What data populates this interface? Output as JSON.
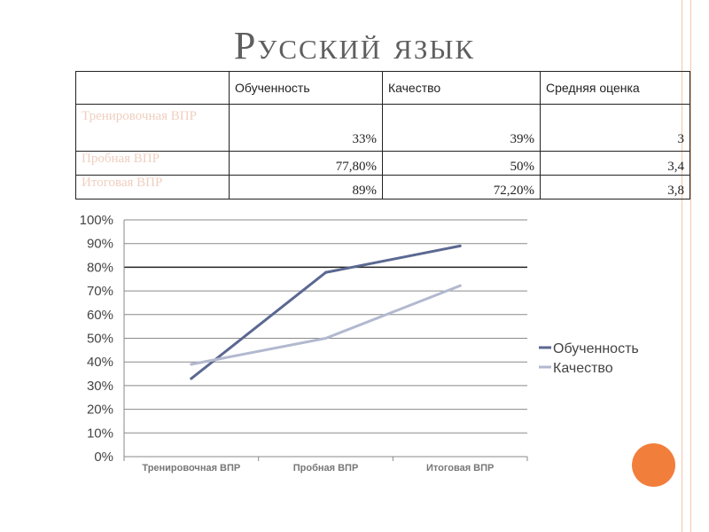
{
  "title": "Русский язык",
  "table": {
    "headers": [
      "",
      "Обученность",
      "Качество",
      "Средняя оценка"
    ],
    "rows": [
      {
        "label": "Тренировочная ВПР",
        "values": [
          "33%",
          "39%",
          "3"
        ]
      },
      {
        "label": "Пробная ВПР",
        "values": [
          "77,80%",
          "50%",
          "3,4"
        ]
      },
      {
        "label": "Итоговая ВПР",
        "values": [
          "89%",
          "72,20%",
          "3,8"
        ]
      }
    ]
  },
  "chart_data": {
    "type": "line",
    "title": "",
    "xlabel": "",
    "ylabel": "",
    "categories": [
      "Тренировочная ВПР",
      "Пробная ВПР",
      "Итоговая ВПР"
    ],
    "series": [
      {
        "name": "Обученность",
        "values": [
          33,
          77.8,
          89
        ],
        "color": "#5b6891"
      },
      {
        "name": "Качество",
        "values": [
          39,
          50,
          72.2
        ],
        "color": "#b2b9cf"
      }
    ],
    "ylim": [
      0,
      100
    ],
    "yticks": [
      "0%",
      "10%",
      "20%",
      "30%",
      "40%",
      "50%",
      "60%",
      "70%",
      "80%",
      "90%",
      "100%"
    ],
    "grid": true,
    "legend": "right"
  }
}
